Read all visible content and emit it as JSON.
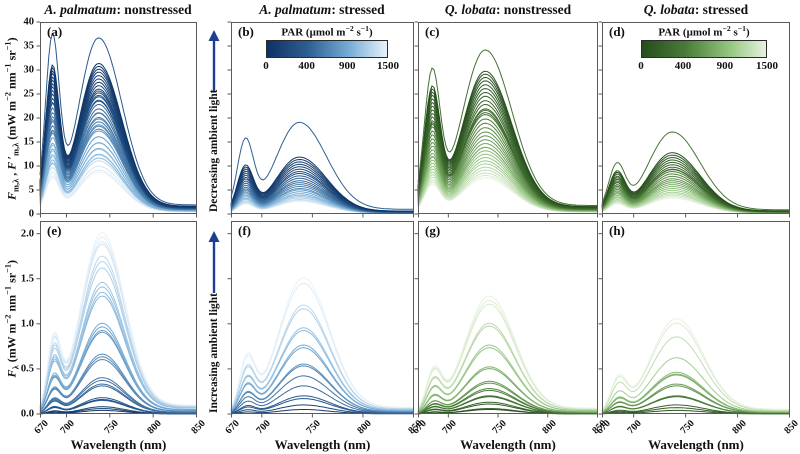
{
  "figure": {
    "titles": [
      {
        "species": "A. palmatum",
        "rest": ": nonstressed"
      },
      {
        "species": "A. palmatum",
        "rest": ": stressed"
      },
      {
        "species": "Q. lobata",
        "rest": ": nonstressed"
      },
      {
        "species": "Q. lobata",
        "rest": ": stressed"
      }
    ],
    "ylabel_top_html": "<i>F</i><sub>m,λ</sub> , <i>F</i> ′<sub>m,λ</sub> (mW m<sup>−2</sup> nm<sup>−1</sup> sr<sup>−1</sup>)",
    "ylabel_bottom_html": "<i>F</i><sub>λ</sub> (mW m<sup>−2</sup> nm<sup>−1</sup> sr<sup>−1</sup>)",
    "xlabel": "Wavelength (nm)",
    "arrow_top_label": "Decreasing ambient light",
    "arrow_bottom_label": "Increasing ambient light",
    "arrow_color": "#1e3f8f",
    "spine_color": "#5a5a5a",
    "colorbar": {
      "title_html": "PAR (μmol m<sup>−2</sup> s<sup>−1</sup>)",
      "ticks": [
        "0",
        "400",
        "900",
        "1500"
      ]
    },
    "palettes": {
      "blues": [
        [
          0,
          "#0d3264"
        ],
        [
          0.35,
          "#2f6093"
        ],
        [
          0.7,
          "#7bb0d8"
        ],
        [
          1,
          "#e9f2fa"
        ]
      ],
      "greens": [
        [
          0,
          "#264d1d"
        ],
        [
          0.35,
          "#4a7a38"
        ],
        [
          0.7,
          "#93c47f"
        ],
        [
          1,
          "#e7f2df"
        ]
      ]
    }
  },
  "chart_data": [
    {
      "id": "a",
      "type": "line",
      "title": "A. palmatum: nonstressed",
      "quantity": "Fm",
      "palette": "blues",
      "x_range": [
        670,
        850
      ],
      "xticks": [
        670,
        700,
        750,
        800,
        850
      ],
      "ylim": [
        0,
        40
      ],
      "yticks": [
        "0",
        "5",
        "10",
        "15",
        "20",
        "25",
        "30",
        "35",
        "40"
      ],
      "show_yticklabels": true,
      "show_xticklabels": false,
      "peak_red_nm": 684,
      "peak_farred_nm": 737,
      "curves": [
        [
          0.3,
          35.0,
          36.5
        ],
        [
          0.02,
          28.8,
          31.2
        ],
        [
          0.04,
          28.3,
          30.6
        ],
        [
          0.06,
          27.7,
          30.0
        ],
        [
          0.08,
          27.2,
          29.4
        ],
        [
          0.1,
          26.5,
          28.7
        ],
        [
          0.12,
          25.9,
          28.0
        ],
        [
          0.05,
          25.2,
          27.3
        ],
        [
          0.14,
          24.6,
          26.6
        ],
        [
          0.16,
          23.9,
          25.9
        ],
        [
          0.18,
          23.2,
          25.1
        ],
        [
          0.2,
          22.4,
          24.3
        ],
        [
          0.22,
          21.6,
          23.4
        ],
        [
          0.3,
          23.2,
          25.5
        ],
        [
          0.33,
          22.3,
          24.6
        ],
        [
          0.36,
          21.4,
          23.6
        ],
        [
          0.38,
          20.5,
          22.7
        ],
        [
          0.4,
          19.6,
          21.8
        ],
        [
          0.42,
          18.8,
          20.9
        ],
        [
          0.44,
          17.9,
          20.0
        ],
        [
          0.46,
          17.0,
          19.1
        ],
        [
          0.48,
          16.2,
          18.2
        ],
        [
          0.5,
          15.6,
          17.6
        ],
        [
          0.55,
          18.2,
          21.0
        ],
        [
          0.58,
          17.0,
          19.7
        ],
        [
          0.6,
          15.9,
          18.5
        ],
        [
          0.63,
          14.7,
          17.2
        ],
        [
          0.65,
          13.6,
          16.0
        ],
        [
          0.68,
          12.5,
          14.8
        ],
        [
          0.7,
          11.4,
          13.6
        ],
        [
          0.73,
          10.4,
          12.4
        ],
        [
          0.75,
          9.7,
          11.6
        ],
        [
          0.8,
          13.2,
          16.0
        ],
        [
          0.83,
          12.1,
          14.7
        ],
        [
          0.86,
          11.0,
          13.4
        ],
        [
          0.88,
          9.9,
          12.2
        ],
        [
          0.91,
          8.9,
          11.0
        ],
        [
          0.94,
          8.0,
          9.9
        ],
        [
          0.97,
          7.3,
          9.1
        ],
        [
          1.0,
          6.9,
          8.7
        ]
      ]
    },
    {
      "id": "b",
      "type": "line",
      "title": "A. palmatum: stressed",
      "quantity": "Fm",
      "palette": "blues",
      "x_range": [
        670,
        850
      ],
      "xticks": [
        670,
        700,
        750,
        800,
        850
      ],
      "ylim": [
        0,
        40
      ],
      "yticks": [
        "0",
        "5",
        "10",
        "15",
        "20",
        "25",
        "30",
        "35",
        "40"
      ],
      "show_yticklabels": false,
      "show_xticklabels": false,
      "peak_red_nm": 684,
      "peak_farred_nm": 737,
      "has_colorbar": true,
      "curves": [
        [
          0.35,
          14.5,
          19.0
        ],
        [
          0.02,
          9.4,
          11.8
        ],
        [
          0.05,
          9.0,
          11.3
        ],
        [
          0.08,
          8.6,
          10.8
        ],
        [
          0.1,
          8.2,
          10.3
        ],
        [
          0.13,
          7.8,
          9.8
        ],
        [
          0.16,
          7.4,
          9.3
        ],
        [
          0.19,
          7.0,
          8.8
        ],
        [
          0.22,
          6.7,
          8.4
        ],
        [
          0.3,
          6.3,
          7.9
        ],
        [
          0.34,
          5.9,
          7.4
        ],
        [
          0.38,
          5.5,
          6.9
        ],
        [
          0.42,
          5.1,
          6.5
        ],
        [
          0.46,
          4.8,
          6.1
        ],
        [
          0.5,
          4.5,
          5.7
        ],
        [
          0.54,
          4.2,
          5.3
        ],
        [
          0.6,
          3.9,
          5.0
        ],
        [
          0.65,
          3.6,
          4.6
        ],
        [
          0.7,
          3.3,
          4.2
        ],
        [
          0.75,
          3.0,
          3.9
        ],
        [
          0.8,
          2.8,
          3.6
        ],
        [
          0.85,
          2.5,
          3.3
        ],
        [
          0.9,
          2.3,
          3.0
        ],
        [
          0.95,
          2.1,
          2.8
        ],
        [
          1.0,
          1.9,
          2.6
        ]
      ]
    },
    {
      "id": "c",
      "type": "line",
      "title": "Q. lobata: nonstressed",
      "quantity": "Fm",
      "palette": "greens",
      "x_range": [
        670,
        850
      ],
      "xticks": [
        670,
        700,
        750,
        800,
        850
      ],
      "ylim": [
        0,
        40
      ],
      "yticks": [
        "0",
        "5",
        "10",
        "15",
        "20",
        "25",
        "30",
        "35",
        "40"
      ],
      "show_yticklabels": false,
      "show_xticklabels": false,
      "peak_red_nm": 684,
      "peak_farred_nm": 737,
      "curves": [
        [
          0.28,
          28.0,
          34.0
        ],
        [
          0.02,
          24.6,
          29.6
        ],
        [
          0.04,
          24.0,
          29.0
        ],
        [
          0.06,
          23.4,
          28.3
        ],
        [
          0.08,
          22.8,
          27.6
        ],
        [
          0.1,
          22.1,
          26.8
        ],
        [
          0.12,
          21.4,
          26.0
        ],
        [
          0.14,
          20.7,
          25.2
        ],
        [
          0.16,
          20.0,
          24.4
        ],
        [
          0.18,
          19.3,
          23.5
        ],
        [
          0.2,
          18.6,
          22.7
        ],
        [
          0.22,
          17.9,
          21.8
        ],
        [
          0.24,
          17.2,
          21.0
        ],
        [
          0.3,
          17.5,
          21.5
        ],
        [
          0.33,
          16.7,
          20.6
        ],
        [
          0.36,
          15.9,
          19.7
        ],
        [
          0.39,
          15.2,
          18.8
        ],
        [
          0.42,
          14.4,
          17.9
        ],
        [
          0.45,
          13.7,
          17.0
        ],
        [
          0.48,
          13.0,
          16.2
        ],
        [
          0.51,
          12.3,
          15.4
        ],
        [
          0.54,
          11.6,
          14.6
        ],
        [
          0.57,
          11.0,
          13.8
        ],
        [
          0.62,
          10.9,
          13.8
        ],
        [
          0.65,
          10.3,
          13.1
        ],
        [
          0.68,
          9.7,
          12.4
        ],
        [
          0.71,
          9.1,
          11.7
        ],
        [
          0.74,
          8.6,
          11.0
        ],
        [
          0.78,
          8.0,
          10.4
        ],
        [
          0.82,
          7.5,
          9.7
        ],
        [
          0.86,
          7.0,
          9.1
        ],
        [
          0.9,
          6.5,
          8.5
        ],
        [
          0.95,
          6.1,
          8.0
        ],
        [
          1.0,
          5.7,
          7.5
        ]
      ]
    },
    {
      "id": "d",
      "type": "line",
      "title": "Q. lobata: stressed",
      "quantity": "Fm",
      "palette": "greens",
      "x_range": [
        670,
        850
      ],
      "xticks": [
        670,
        700,
        750,
        800,
        850
      ],
      "ylim": [
        0,
        40
      ],
      "yticks": [
        "0",
        "5",
        "10",
        "15",
        "20",
        "25",
        "30",
        "35",
        "40"
      ],
      "show_yticklabels": false,
      "show_xticklabels": false,
      "peak_red_nm": 684,
      "peak_farred_nm": 737,
      "has_colorbar": true,
      "curves": [
        [
          0.32,
          9.5,
          17.0
        ],
        [
          0.02,
          8.1,
          12.7
        ],
        [
          0.05,
          7.8,
          12.2
        ],
        [
          0.08,
          7.5,
          11.7
        ],
        [
          0.11,
          7.1,
          11.2
        ],
        [
          0.14,
          6.8,
          10.7
        ],
        [
          0.17,
          6.5,
          10.2
        ],
        [
          0.2,
          6.2,
          9.7
        ],
        [
          0.23,
          5.9,
          9.2
        ],
        [
          0.3,
          5.9,
          9.3
        ],
        [
          0.34,
          5.5,
          8.8
        ],
        [
          0.38,
          5.2,
          8.3
        ],
        [
          0.42,
          4.9,
          7.8
        ],
        [
          0.46,
          4.6,
          7.3
        ],
        [
          0.5,
          4.3,
          6.9
        ],
        [
          0.54,
          4.0,
          6.5
        ],
        [
          0.6,
          3.8,
          6.1
        ],
        [
          0.65,
          3.5,
          5.7
        ],
        [
          0.7,
          3.2,
          5.3
        ],
        [
          0.75,
          3.0,
          4.9
        ],
        [
          0.8,
          2.7,
          4.5
        ],
        [
          0.85,
          2.5,
          4.2
        ],
        [
          0.9,
          2.3,
          3.9
        ],
        [
          0.95,
          2.1,
          3.6
        ],
        [
          1.0,
          1.9,
          3.3
        ]
      ]
    },
    {
      "id": "e",
      "type": "line",
      "title": "A. palmatum: nonstressed",
      "quantity": "F",
      "palette": "blues",
      "x_range": [
        670,
        850
      ],
      "xticks": [
        670,
        700,
        750,
        800,
        850
      ],
      "ylim": [
        0,
        2.0
      ],
      "yticks": [
        "0.0",
        "0.5",
        "1.0",
        "1.5",
        "2.0"
      ],
      "show_yticklabels": true,
      "show_xticklabels": true,
      "peak_red_nm": 686,
      "peak_farred_nm": 741,
      "curves": [
        [
          1.0,
          0.76,
          2.0
        ],
        [
          0.98,
          0.74,
          1.95
        ],
        [
          0.96,
          0.72,
          1.9
        ],
        [
          0.94,
          0.71,
          1.87
        ],
        [
          0.88,
          0.66,
          1.74
        ],
        [
          0.86,
          0.64,
          1.68
        ],
        [
          0.84,
          0.61,
          1.61
        ],
        [
          0.8,
          0.55,
          1.45
        ],
        [
          0.78,
          0.53,
          1.4
        ],
        [
          0.76,
          0.51,
          1.34
        ],
        [
          0.74,
          0.49,
          1.3
        ],
        [
          0.68,
          0.38,
          1.0
        ],
        [
          0.66,
          0.36,
          0.96
        ],
        [
          0.64,
          0.35,
          0.92
        ],
        [
          0.62,
          0.34,
          0.9
        ],
        [
          0.55,
          0.25,
          0.66
        ],
        [
          0.53,
          0.24,
          0.63
        ],
        [
          0.51,
          0.23,
          0.6
        ],
        [
          0.44,
          0.15,
          0.4
        ],
        [
          0.42,
          0.14,
          0.37
        ],
        [
          0.4,
          0.13,
          0.33
        ],
        [
          0.38,
          0.12,
          0.31
        ],
        [
          0.28,
          0.07,
          0.18
        ],
        [
          0.26,
          0.065,
          0.16
        ],
        [
          0.24,
          0.06,
          0.15
        ],
        [
          0.12,
          0.03,
          0.08
        ],
        [
          0.08,
          0.02,
          0.06
        ],
        [
          0.05,
          0.015,
          0.04
        ]
      ]
    },
    {
      "id": "f",
      "type": "line",
      "title": "A. palmatum: stressed",
      "quantity": "F",
      "palette": "blues",
      "x_range": [
        670,
        850
      ],
      "xticks": [
        670,
        700,
        750,
        800,
        850
      ],
      "ylim": [
        0,
        2.0
      ],
      "yticks": [
        "0.0",
        "0.5",
        "1.0",
        "1.5",
        "2.0"
      ],
      "show_yticklabels": false,
      "show_xticklabels": true,
      "peak_red_nm": 686,
      "peak_farred_nm": 741,
      "curves": [
        [
          1.0,
          0.57,
          1.5
        ],
        [
          0.97,
          0.55,
          1.44
        ],
        [
          0.88,
          0.46,
          1.2
        ],
        [
          0.85,
          0.44,
          1.16
        ],
        [
          0.78,
          0.36,
          0.95
        ],
        [
          0.75,
          0.35,
          0.92
        ],
        [
          0.68,
          0.29,
          0.76
        ],
        [
          0.65,
          0.28,
          0.73
        ],
        [
          0.56,
          0.21,
          0.55
        ],
        [
          0.53,
          0.2,
          0.53
        ],
        [
          0.44,
          0.16,
          0.42
        ],
        [
          0.4,
          0.12,
          0.31
        ],
        [
          0.3,
          0.08,
          0.2
        ],
        [
          0.26,
          0.065,
          0.17
        ],
        [
          0.15,
          0.04,
          0.1
        ],
        [
          0.08,
          0.02,
          0.05
        ]
      ]
    },
    {
      "id": "g",
      "type": "line",
      "title": "Q. lobata: nonstressed",
      "quantity": "F",
      "palette": "greens",
      "x_range": [
        670,
        850
      ],
      "xticks": [
        670,
        700,
        750,
        800,
        850
      ],
      "ylim": [
        0,
        2.0
      ],
      "yticks": [
        "0.0",
        "0.5",
        "1.0",
        "1.5",
        "2.0"
      ],
      "show_yticklabels": false,
      "show_xticklabels": true,
      "peak_red_nm": 686,
      "peak_farred_nm": 741,
      "curves": [
        [
          1.0,
          0.44,
          1.3
        ],
        [
          0.97,
          0.42,
          1.25
        ],
        [
          0.94,
          0.41,
          1.21
        ],
        [
          0.85,
          0.34,
          1.0
        ],
        [
          0.82,
          0.33,
          0.97
        ],
        [
          0.74,
          0.26,
          0.76
        ],
        [
          0.71,
          0.25,
          0.73
        ],
        [
          0.62,
          0.18,
          0.52
        ],
        [
          0.59,
          0.17,
          0.5
        ],
        [
          0.5,
          0.12,
          0.36
        ],
        [
          0.47,
          0.12,
          0.34
        ],
        [
          0.38,
          0.095,
          0.28
        ],
        [
          0.35,
          0.09,
          0.26
        ],
        [
          0.27,
          0.07,
          0.2
        ],
        [
          0.24,
          0.065,
          0.19
        ],
        [
          0.15,
          0.045,
          0.13
        ],
        [
          0.12,
          0.04,
          0.11
        ],
        [
          0.06,
          0.02,
          0.06
        ],
        [
          0.03,
          0.015,
          0.05
        ]
      ]
    },
    {
      "id": "h",
      "type": "line",
      "title": "Q. lobata: stressed",
      "quantity": "F",
      "palette": "greens",
      "x_range": [
        670,
        850
      ],
      "xticks": [
        670,
        700,
        750,
        800,
        850
      ],
      "ylim": [
        0,
        2.0
      ],
      "yticks": [
        "0.0",
        "0.5",
        "1.0",
        "1.5",
        "2.0"
      ],
      "show_yticklabels": false,
      "show_xticklabels": true,
      "peak_red_nm": 686,
      "peak_farred_nm": 741,
      "curves": [
        [
          1.0,
          0.36,
          1.05
        ],
        [
          0.96,
          0.34,
          1.0
        ],
        [
          0.86,
          0.29,
          0.85
        ],
        [
          0.76,
          0.21,
          0.62
        ],
        [
          0.66,
          0.155,
          0.46
        ],
        [
          0.63,
          0.15,
          0.44
        ],
        [
          0.6,
          0.145,
          0.43
        ],
        [
          0.5,
          0.11,
          0.33
        ],
        [
          0.46,
          0.105,
          0.31
        ],
        [
          0.35,
          0.07,
          0.2
        ],
        [
          0.3,
          0.065,
          0.19
        ],
        [
          0.18,
          0.035,
          0.1
        ],
        [
          0.12,
          0.025,
          0.07
        ],
        [
          0.06,
          0.015,
          0.04
        ]
      ]
    }
  ]
}
